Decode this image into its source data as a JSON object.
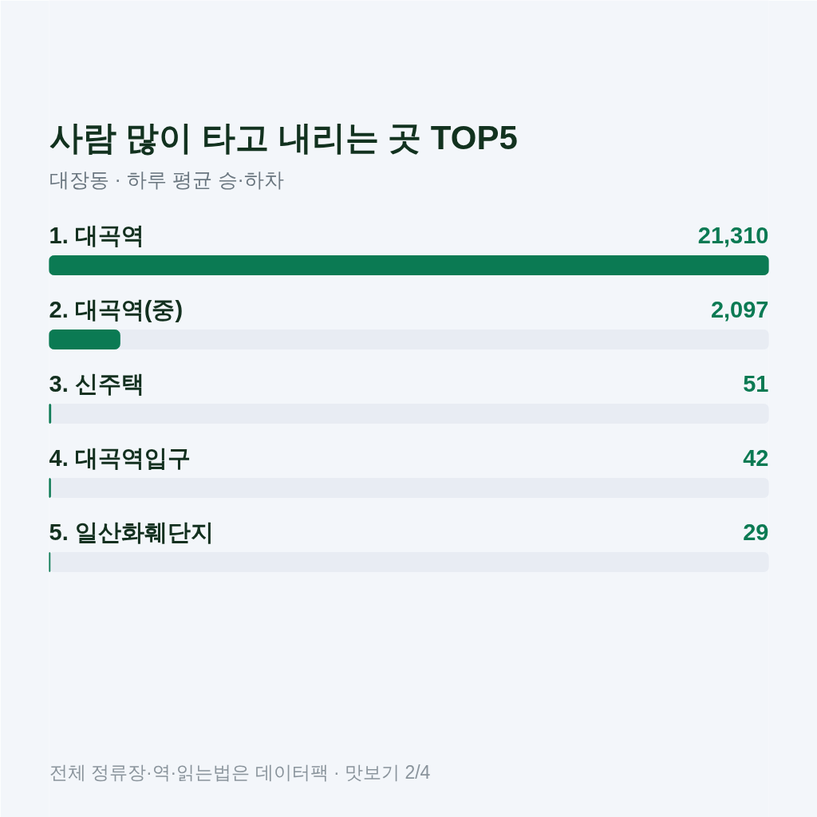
{
  "chart_data": {
    "type": "bar",
    "orientation": "horizontal",
    "title": "사람 많이 타고 내리는 곳 TOP5",
    "subtitle": "대장동 · 하루 평균 승·하차",
    "categories": [
      "1. 대곡역",
      "2. 대곡역(중)",
      "3. 신주택",
      "4. 대곡역입구",
      "5. 일산화훼단지"
    ],
    "values": [
      21310,
      2097,
      51,
      42,
      29
    ],
    "color": "#0b7a53",
    "value_labels": [
      "21,310",
      "2,097",
      "51",
      "42",
      "29"
    ],
    "tick_labels": false,
    "grid": false,
    "annotations": [
      "전체 정류장·역·읽는법은 데이터팩 · 맛보기 2/4"
    ]
  }
}
